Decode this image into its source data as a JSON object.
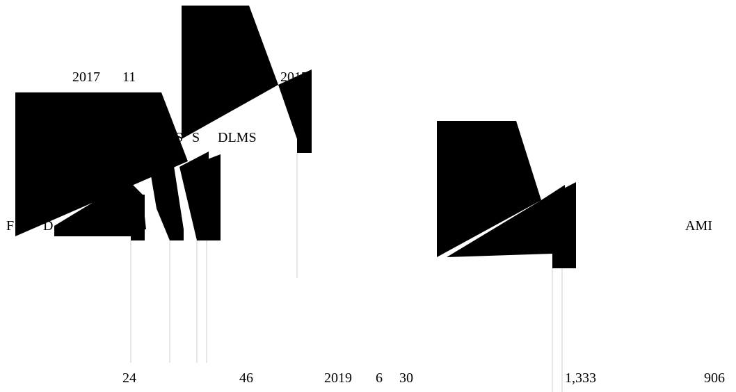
{
  "colors": {
    "ink": "#000000",
    "leader_line": "#cccccc",
    "background": "#ffffff"
  },
  "labels": {
    "year_2017_a": "2017",
    "num_11": "11",
    "year_2017_b": "2017",
    "letter_s_1": "S",
    "letter_s_2": "S",
    "dlms": "DLMS",
    "letter_f": "F",
    "letter_d": "D",
    "ami": "AMI",
    "num_24": "24",
    "num_46": "46",
    "year_2019": "2019",
    "num_6": "6",
    "num_30": "30",
    "num_1333": "1,333",
    "num_906": "906"
  }
}
